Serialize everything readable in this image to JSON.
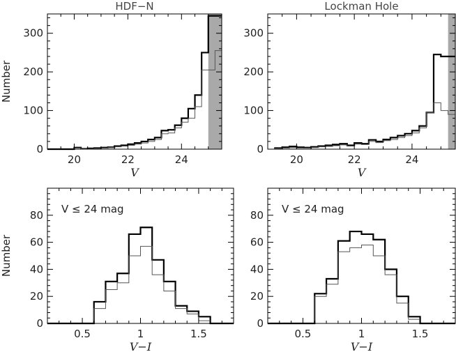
{
  "chart_data": [
    {
      "type": "histogram",
      "title": "HDF−N",
      "xlabel": "V",
      "ylabel": "Number",
      "xlim": [
        19,
        25.5
      ],
      "ylim": [
        0,
        350
      ],
      "xticks": [
        20,
        22,
        24
      ],
      "yticks": [
        0,
        100,
        200,
        300
      ],
      "shaded_region": [
        25,
        25.5
      ],
      "bin_edges": [
        19.0,
        20.0,
        20.25,
        20.5,
        20.75,
        21.0,
        21.25,
        21.5,
        21.75,
        22.0,
        22.25,
        22.5,
        22.75,
        23.0,
        23.25,
        23.5,
        23.75,
        24.0,
        24.25,
        24.5,
        24.75,
        25.0,
        25.25,
        25.5
      ],
      "series": [
        {
          "name": "thick",
          "values": [
            0,
            4,
            1,
            2,
            3,
            4,
            5,
            8,
            10,
            13,
            16,
            20,
            25,
            30,
            48,
            50,
            62,
            80,
            105,
            140,
            250,
            345,
            345
          ]
        },
        {
          "name": "thin",
          "values": [
            0,
            3,
            1,
            1,
            2,
            3,
            4,
            6,
            8,
            10,
            13,
            16,
            20,
            25,
            40,
            42,
            55,
            70,
            80,
            110,
            205,
            205,
            255
          ]
        }
      ]
    },
    {
      "type": "histogram",
      "title": "Lockman Hole",
      "xlabel": "V",
      "ylabel": "",
      "xlim": [
        19,
        25.5
      ],
      "ylim": [
        0,
        350
      ],
      "xticks": [
        20,
        22,
        24
      ],
      "yticks": [
        0,
        100,
        200,
        300
      ],
      "shaded_region": [
        25.25,
        25.5
      ],
      "bin_edges": [
        19.25,
        19.5,
        19.75,
        20.0,
        20.25,
        20.5,
        20.75,
        21.0,
        21.25,
        21.5,
        21.75,
        22.0,
        22.25,
        22.5,
        22.75,
        23.0,
        23.25,
        23.5,
        23.75,
        24.0,
        24.25,
        24.5,
        24.75,
        25.0,
        25.25,
        25.5
      ],
      "series": [
        {
          "name": "thick",
          "values": [
            3,
            5,
            7,
            5,
            4,
            6,
            8,
            10,
            12,
            14,
            10,
            16,
            14,
            24,
            20,
            25,
            30,
            35,
            40,
            48,
            60,
            95,
            245,
            240,
            240
          ]
        },
        {
          "name": "thin",
          "values": [
            2,
            3,
            4,
            3,
            3,
            4,
            6,
            7,
            9,
            11,
            8,
            13,
            12,
            20,
            17,
            22,
            25,
            30,
            35,
            42,
            55,
            95,
            120,
            100,
            90
          ]
        }
      ]
    },
    {
      "type": "histogram",
      "title": "",
      "xlabel": "V−I",
      "ylabel": "Number",
      "annotation": "V ≤ 24  mag",
      "xlim": [
        0.2,
        1.8
      ],
      "ylim": [
        0,
        100
      ],
      "xticks": [
        0.5,
        1.0,
        1.5
      ],
      "xtick_labels": [
        "0.5",
        "1",
        "1.5"
      ],
      "yticks": [
        0,
        20,
        40,
        60,
        80
      ],
      "bin_edges": [
        0.2,
        0.6,
        0.7,
        0.8,
        0.9,
        1.0,
        1.1,
        1.2,
        1.3,
        1.4,
        1.5,
        1.6,
        1.8
      ],
      "series": [
        {
          "name": "thick",
          "values": [
            0,
            16,
            31,
            37,
            66,
            71,
            47,
            31,
            13,
            9,
            5,
            0
          ]
        },
        {
          "name": "thin",
          "values": [
            0,
            11,
            25,
            30,
            50,
            57,
            36,
            24,
            11,
            7,
            2,
            0
          ]
        }
      ]
    },
    {
      "type": "histogram",
      "title": "",
      "xlabel": "V−I",
      "ylabel": "",
      "annotation": "V ≤ 24  mag",
      "xlim": [
        0.2,
        1.8
      ],
      "ylim": [
        0,
        100
      ],
      "xticks": [
        0.5,
        1.0,
        1.5
      ],
      "xtick_labels": [
        "0.5",
        "1",
        "1.5"
      ],
      "yticks": [
        0,
        20,
        40,
        60,
        80
      ],
      "bin_edges": [
        0.2,
        0.6,
        0.7,
        0.8,
        0.9,
        1.0,
        1.1,
        1.2,
        1.3,
        1.4,
        1.5,
        1.6,
        1.8
      ],
      "series": [
        {
          "name": "thick",
          "values": [
            0,
            22,
            33,
            61,
            68,
            66,
            62,
            40,
            20,
            5,
            0,
            0
          ]
        },
        {
          "name": "thin",
          "values": [
            0,
            20,
            29,
            53,
            56,
            58,
            50,
            36,
            15,
            3,
            0,
            0
          ]
        }
      ]
    }
  ]
}
